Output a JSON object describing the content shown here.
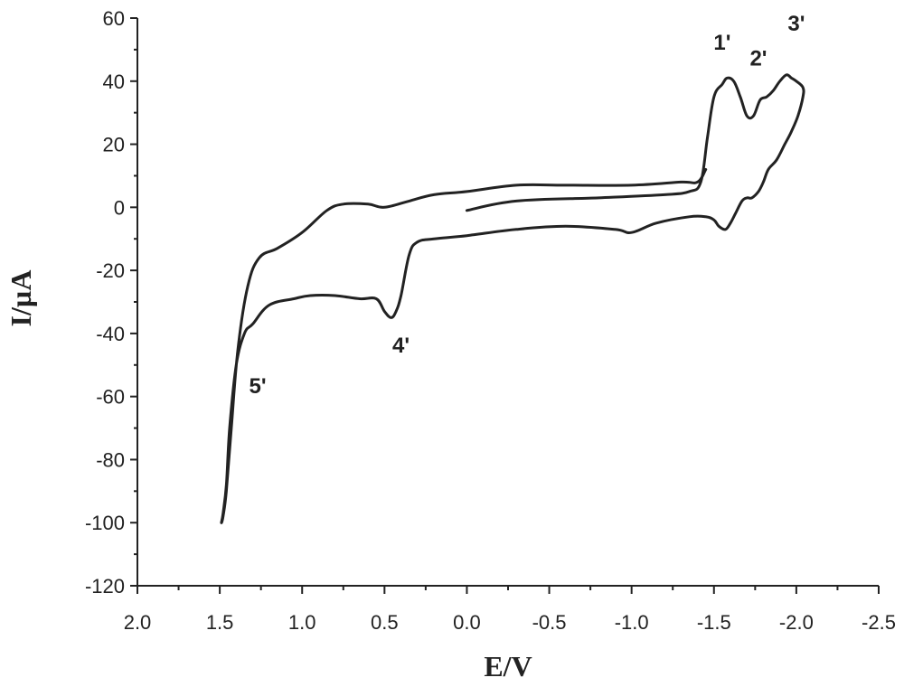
{
  "chart_data": {
    "type": "line",
    "xlabel": "E/V",
    "ylabel": "I/µA",
    "xlim": [
      2.0,
      -2.5
    ],
    "ylim": [
      -120,
      60
    ],
    "x_reversed": true,
    "x_ticks": [
      2.0,
      1.5,
      1.0,
      0.5,
      0.0,
      -0.5,
      -1.0,
      -1.5,
      -2.0,
      -2.5
    ],
    "x_tick_labels": [
      "2.0",
      "1.5",
      "1.0",
      "0.5",
      "0.0",
      "-0.5",
      "-1.0",
      "-1.5",
      "-2.0",
      "-2.5"
    ],
    "y_ticks": [
      60,
      40,
      20,
      0,
      -20,
      -40,
      -60,
      -80,
      -100,
      -120
    ],
    "y_tick_labels": [
      "60",
      "40",
      "20",
      "0",
      "-20",
      "-40",
      "-60",
      "-80",
      "-100",
      "-120"
    ],
    "grid": false,
    "legend": "none",
    "series": [
      {
        "x": [
          0.0,
          -0.3,
          -0.8,
          -1.2,
          -1.35,
          -1.42,
          -1.46,
          -1.5,
          -1.55,
          -1.58,
          -1.62,
          -1.66,
          -1.7,
          -1.74,
          -1.78,
          -1.82,
          -1.86,
          -1.9,
          -1.94,
          -1.97,
          -2.0,
          -2.04,
          -2.04,
          -2.01,
          -1.97,
          -1.93,
          -1.88,
          -1.83,
          -1.8,
          -1.77,
          -1.73,
          -1.7,
          -1.67,
          -1.63,
          -1.6,
          -1.57,
          -1.53,
          -1.5,
          -1.45,
          -1.35,
          -1.15,
          -1.0,
          -0.9,
          -0.6,
          -0.3,
          0.0,
          0.2,
          0.3,
          0.35,
          0.4,
          0.43,
          0.46,
          0.5,
          0.55,
          0.65,
          0.8,
          0.95,
          1.05,
          1.2,
          1.3,
          1.35,
          1.4,
          1.44,
          1.46,
          1.48,
          1.49,
          1.48,
          1.46,
          1.43,
          1.39,
          1.33,
          1.26,
          1.15,
          1.0,
          0.85,
          0.75,
          0.6,
          0.5,
          0.35,
          0.2,
          0.0,
          -0.3,
          -0.6,
          -1.0,
          -1.3,
          -1.4,
          -1.45
        ],
        "y": [
          -1,
          2,
          3,
          4,
          5,
          8,
          22,
          35,
          39,
          41,
          40,
          35,
          29,
          29,
          34,
          35,
          37,
          40,
          42,
          41,
          40,
          38,
          35,
          29,
          24,
          20,
          15,
          12,
          8,
          5,
          3,
          3,
          2,
          -2,
          -5,
          -7,
          -6,
          -4,
          -3,
          -3,
          -5,
          -8,
          -7,
          -6,
          -7,
          -9,
          -10,
          -11,
          -15,
          -28,
          -33,
          -35,
          -33,
          -29,
          -29,
          -28,
          -28,
          -29,
          -31,
          -37,
          -40,
          -50,
          -70,
          -88,
          -97,
          -100,
          -98,
          -90,
          -70,
          -45,
          -25,
          -16,
          -13,
          -8,
          -1,
          1,
          1,
          0,
          2,
          4,
          5,
          7,
          7,
          7,
          8,
          8,
          12
        ]
      }
    ],
    "annotations": [
      {
        "text": "1'",
        "x": -1.55,
        "y": 50
      },
      {
        "text": "2'",
        "x": -1.77,
        "y": 45
      },
      {
        "text": "3'",
        "x": -2.0,
        "y": 56
      },
      {
        "text": "4'",
        "x": 0.4,
        "y": -46
      },
      {
        "text": "5'",
        "x": 1.27,
        "y": -59
      }
    ]
  }
}
